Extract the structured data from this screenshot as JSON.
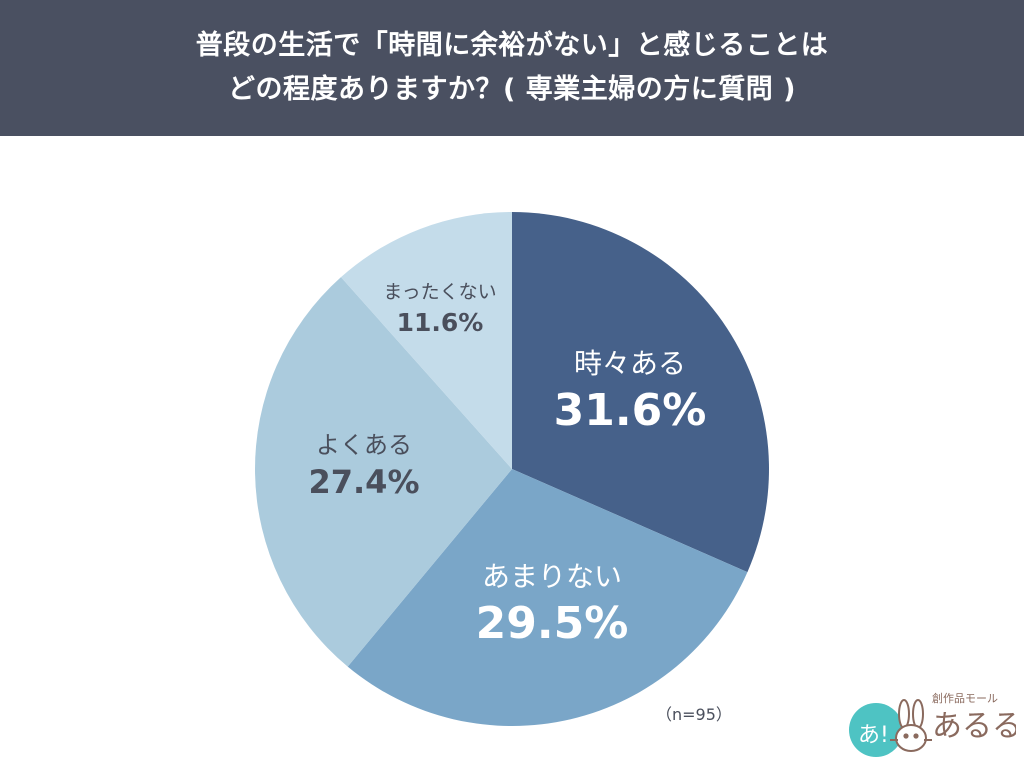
{
  "header": {
    "title_line1": "普段の生活で「時間に余裕がない」と感じることは",
    "title_line2": "どの程度ありますか？( 専業主婦の方に質問 )",
    "background": "#4a5061"
  },
  "note": "（n=95）",
  "logo": {
    "small_text": "創作品モール",
    "big_text": "あるる",
    "badge_text": "あ!",
    "icon": "rabbit-icon"
  },
  "chart_data": {
    "type": "pie",
    "title": "普段の生活で「時間に余裕がない」と感じることはどの程度ありますか？( 専業主婦の方に質問 )",
    "start_angle": "12 o'clock, clockwise",
    "sample_size": 95,
    "categories": [
      "時々ある",
      "あまりない",
      "よくある",
      "まったくない"
    ],
    "values": [
      31.6,
      29.5,
      27.4,
      11.6
    ],
    "unit": "%",
    "colors": [
      "#46618a",
      "#7aa6c8",
      "#abcbdd",
      "#c4dcea"
    ],
    "label_colors": [
      "#ffffff",
      "#ffffff",
      "#4a4f5c",
      "#4a4f5c"
    ],
    "labels": [
      {
        "name": "時々ある",
        "pct": "31.6%"
      },
      {
        "name": "あまりない",
        "pct": "29.5%"
      },
      {
        "name": "よくある",
        "pct": "27.4%"
      },
      {
        "name": "まったくない",
        "pct": "11.6%"
      }
    ]
  }
}
